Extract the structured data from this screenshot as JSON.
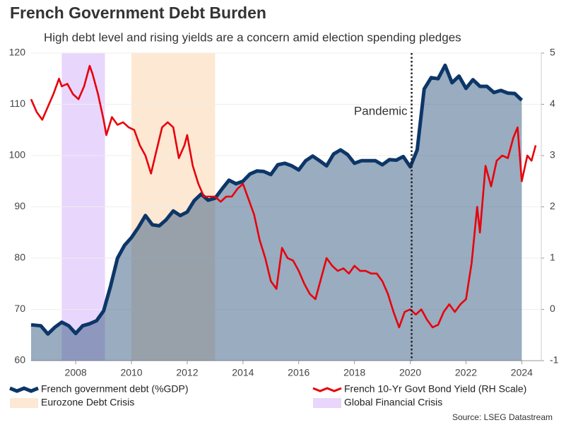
{
  "chart_data": {
    "type": "line",
    "title": "French Government Debt Burden",
    "subtitle": "High debt level and rising yields are a concern amid election spending pledges",
    "source": "Source: LSEG Datastream",
    "xlim": [
      2006.4,
      2024.7
    ],
    "xticks": [
      2008,
      2010,
      2012,
      2014,
      2016,
      2018,
      2020,
      2022,
      2024
    ],
    "ylim": [
      60,
      120
    ],
    "yticks": [
      60,
      70,
      80,
      90,
      100,
      110,
      120
    ],
    "y2lim": [
      -1,
      5
    ],
    "y2ticks": [
      -1,
      0,
      1,
      2,
      3,
      4,
      5
    ],
    "grid": true,
    "shaded_regions": [
      {
        "name": "Eurozone Debt Crisis",
        "start": 2010,
        "end": 2013,
        "color": "#fde8d3"
      },
      {
        "name": "Global Financial Crisis",
        "start": 2007.5,
        "end": 2009.05,
        "color": "#e8d6fc"
      }
    ],
    "annotations": [
      {
        "text": "Pandemic",
        "x": 2020.05
      }
    ],
    "series": [
      {
        "name": "French government debt (%GDP)",
        "color": "#0d3668",
        "area": true,
        "axis": "y",
        "x": [
          2006.4,
          2006.75,
          2007,
          2007.25,
          2007.5,
          2007.75,
          2008,
          2008.25,
          2008.5,
          2008.75,
          2009,
          2009.25,
          2009.5,
          2009.75,
          2010,
          2010.25,
          2010.5,
          2010.75,
          2011,
          2011.25,
          2011.5,
          2011.75,
          2012,
          2012.25,
          2012.5,
          2012.75,
          2013,
          2013.25,
          2013.5,
          2013.75,
          2014,
          2014.25,
          2014.5,
          2014.75,
          2015,
          2015.25,
          2015.5,
          2015.75,
          2016,
          2016.25,
          2016.5,
          2016.75,
          2017,
          2017.25,
          2017.5,
          2017.75,
          2018,
          2018.25,
          2018.5,
          2018.75,
          2019,
          2019.25,
          2019.5,
          2019.75,
          2020,
          2020.25,
          2020.5,
          2020.75,
          2021,
          2021.25,
          2021.5,
          2021.75,
          2022,
          2022.25,
          2022.5,
          2022.75,
          2023,
          2023.25,
          2023.5,
          2023.75,
          2024
        ],
        "values": [
          67,
          66.8,
          65.2,
          66.5,
          67.5,
          66.8,
          65.3,
          66.8,
          67.2,
          67.8,
          69.7,
          74.5,
          80,
          82.5,
          84,
          86,
          88.3,
          86.5,
          86.3,
          87.5,
          89.2,
          88.3,
          89,
          91.2,
          92.5,
          91.3,
          91.7,
          93.5,
          95.2,
          94.5,
          95,
          96.4,
          97,
          96.9,
          96.3,
          98.2,
          98.5,
          98,
          97.2,
          99,
          99.9,
          99,
          98,
          100.3,
          101.1,
          100.2,
          98.5,
          99,
          99,
          99,
          98.2,
          99.2,
          99.1,
          99.8,
          97.8,
          101.1,
          113,
          115.2,
          115,
          117.6,
          114.2,
          115.5,
          113.1,
          114.8,
          113.5,
          113.5,
          112.3,
          112.7,
          112.2,
          112.1,
          110.8
        ]
      },
      {
        "name": "French 10-Yr Govt Bond Yield (RH Scale)",
        "color": "#e8000b",
        "area": false,
        "axis": "y2",
        "x": [
          2006.4,
          2006.6,
          2006.8,
          2007,
          2007.2,
          2007.4,
          2007.5,
          2007.7,
          2007.9,
          2008.1,
          2008.3,
          2008.5,
          2008.6,
          2008.8,
          2009,
          2009.1,
          2009.3,
          2009.5,
          2009.7,
          2009.9,
          2010.1,
          2010.3,
          2010.5,
          2010.7,
          2010.9,
          2011.1,
          2011.3,
          2011.5,
          2011.7,
          2011.9,
          2012,
          2012.2,
          2012.4,
          2012.6,
          2012.8,
          2013,
          2013.2,
          2013.4,
          2013.6,
          2013.8,
          2014,
          2014.2,
          2014.4,
          2014.6,
          2014.8,
          2015,
          2015.2,
          2015.4,
          2015.6,
          2015.8,
          2016,
          2016.2,
          2016.4,
          2016.6,
          2016.8,
          2017,
          2017.2,
          2017.4,
          2017.6,
          2017.8,
          2018,
          2018.2,
          2018.4,
          2018.6,
          2018.8,
          2019,
          2019.2,
          2019.4,
          2019.6,
          2019.8,
          2020,
          2020.2,
          2020.4,
          2020.6,
          2020.8,
          2021,
          2021.2,
          2021.4,
          2021.6,
          2021.8,
          2022,
          2022.2,
          2022.4,
          2022.5,
          2022.7,
          2022.9,
          2023.1,
          2023.3,
          2023.5,
          2023.7,
          2023.85,
          2024,
          2024.2,
          2024.35,
          2024.5
        ],
        "values": [
          4.1,
          3.85,
          3.7,
          3.95,
          4.2,
          4.5,
          4.35,
          4.4,
          4.2,
          4.1,
          4.35,
          4.75,
          4.6,
          4.2,
          3.7,
          3.4,
          3.75,
          3.6,
          3.65,
          3.55,
          3.5,
          3.2,
          3.0,
          2.65,
          3.1,
          3.55,
          3.65,
          3.55,
          2.95,
          3.2,
          3.4,
          2.8,
          2.45,
          2.2,
          2.2,
          2.2,
          2.1,
          2.2,
          2.2,
          2.35,
          2.45,
          2.15,
          1.85,
          1.35,
          1.0,
          0.55,
          0.4,
          1.2,
          1.0,
          0.95,
          0.75,
          0.5,
          0.3,
          0.2,
          0.6,
          1.0,
          0.85,
          0.75,
          0.8,
          0.7,
          0.85,
          0.75,
          0.75,
          0.7,
          0.7,
          0.55,
          0.3,
          -0.05,
          -0.35,
          -0.05,
          0.0,
          -0.1,
          0.0,
          -0.2,
          -0.35,
          -0.3,
          -0.05,
          0.1,
          -0.05,
          0.1,
          0.2,
          0.9,
          2.0,
          1.5,
          2.8,
          2.4,
          2.9,
          3.0,
          2.95,
          3.35,
          3.55,
          2.5,
          3.0,
          2.9,
          3.2
        ]
      }
    ]
  }
}
